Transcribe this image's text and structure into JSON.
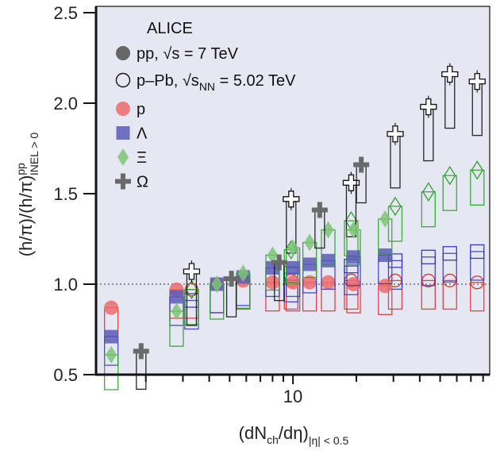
{
  "chart_data": {
    "type": "scatter",
    "title": "",
    "xlabel": {
      "main": "(dN",
      "sub1": "ch",
      "mid": "/dη)",
      "sub2": "|η| < 0.5"
    },
    "ylabel": {
      "main": "(h/π)/(h/π)",
      "sup": "pp",
      "sub": "INEL > 0"
    },
    "xscale": "log",
    "xlim": [
      1.16,
      86
    ],
    "ylim": [
      0.5,
      2.535
    ],
    "yticks": [
      "0.5",
      "1.0",
      "1.5",
      "2.0",
      "2.5"
    ],
    "xtick_labels": [
      "10"
    ],
    "reference_line": 1.0,
    "legend": {
      "placement": "top-left",
      "experiment": "ALICE",
      "pp": "pp, √s = 7 TeV",
      "ppb_main": "p–Pb, √s",
      "ppb_sub": "NN",
      "ppb_tail": " = 5.02 TeV",
      "species": [
        {
          "key": "p",
          "label": "p",
          "marker": "circle",
          "color": "#ef6b6b",
          "edge": "#e03030"
        },
        {
          "key": "L",
          "label": "Λ",
          "marker": "square",
          "color": "#5b5cb6",
          "edge": "#3a3ab8"
        },
        {
          "key": "X",
          "label": "Ξ",
          "marker": "diamond",
          "color": "#7cc474",
          "edge": "#2ea02e"
        },
        {
          "key": "O",
          "label": "Ω",
          "marker": "cross",
          "color": "#6a6a6a",
          "edge": "#111111"
        }
      ]
    },
    "series": [
      {
        "system": "pp",
        "species": "p",
        "x": [
          1.37,
          2.8,
          4.35,
          5.8,
          8.0,
          10,
          12,
          14.7,
          19.4,
          27.4
        ],
        "y": [
          0.87,
          0.97,
          1.0,
          1.02,
          1.01,
          1.01,
          1.01,
          1.01,
          1.0,
          0.99
        ]
      },
      {
        "system": "pp",
        "species": "L",
        "x": [
          1.37,
          2.8,
          4.35,
          5.8,
          8.0,
          10,
          12,
          14.7,
          19.4,
          27.4
        ],
        "y": [
          0.71,
          0.93,
          1.0,
          1.04,
          1.09,
          1.09,
          1.11,
          1.13,
          1.15,
          1.16
        ]
      },
      {
        "system": "pp",
        "species": "X",
        "x": [
          1.37,
          2.8,
          4.35,
          5.8,
          8.0,
          10,
          12,
          14.7,
          19.4,
          27.4
        ],
        "y": [
          0.61,
          0.85,
          1.0,
          1.06,
          1.16,
          1.2,
          1.23,
          1.3,
          1.3,
          1.36
        ]
      },
      {
        "system": "pp",
        "species": "O",
        "x": [
          1.9,
          5.1,
          8.6,
          13.4,
          21.1
        ],
        "y": [
          0.63,
          1.03,
          1.12,
          1.41,
          1.66
        ]
      },
      {
        "system": "pPb",
        "species": "p",
        "x": [
          3.3,
          9.8,
          18.9,
          30.6,
          44,
          55.6,
          75
        ],
        "y": [
          0.97,
          1.02,
          1.02,
          1.02,
          1.02,
          1.02,
          1.01
        ]
      },
      {
        "system": "pPb",
        "species": "L",
        "x": [
          3.3,
          9.8,
          18.9,
          30.6,
          44,
          55.6,
          75
        ],
        "y": [
          0.91,
          1.06,
          1.1,
          1.13,
          1.15,
          1.17,
          1.18
        ]
      },
      {
        "system": "pPb",
        "species": "X",
        "x": [
          3.3,
          9.8,
          18.9,
          30.6,
          44,
          55.6,
          75
        ],
        "y": [
          0.97,
          1.19,
          1.35,
          1.43,
          1.51,
          1.6,
          1.63
        ]
      },
      {
        "system": "pPb",
        "species": "O",
        "x": [
          3.3,
          9.8,
          18.9,
          30.6,
          44,
          55.6,
          75
        ],
        "y": [
          1.07,
          1.47,
          1.56,
          1.83,
          1.98,
          2.16,
          2.12
        ]
      }
    ]
  }
}
